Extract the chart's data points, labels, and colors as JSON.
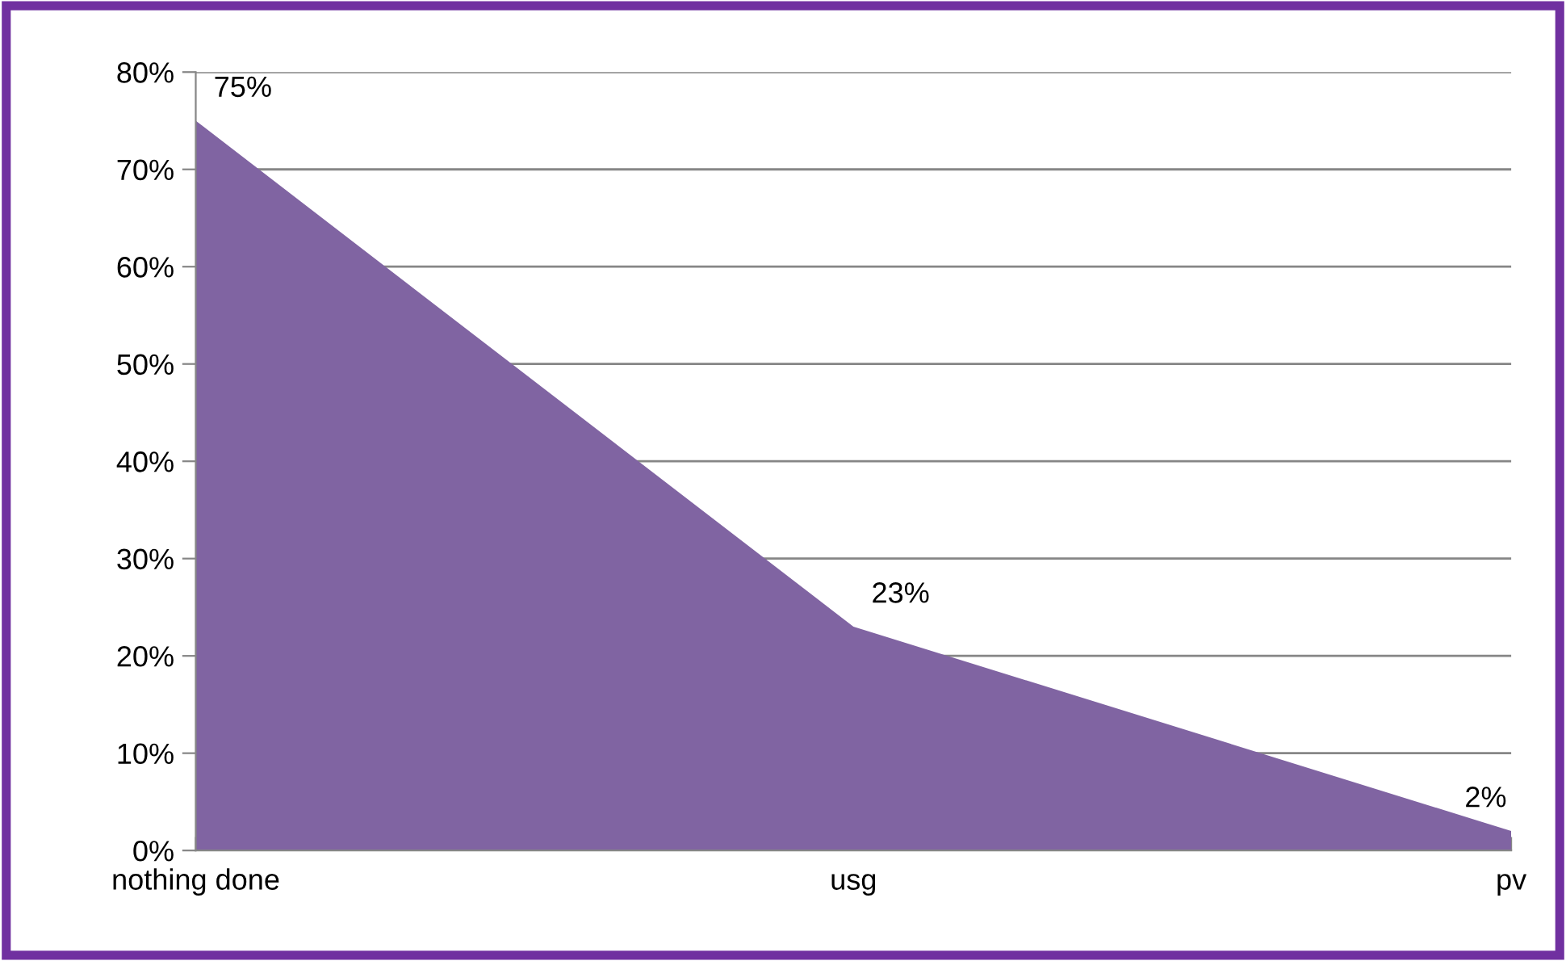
{
  "chart_data": {
    "type": "area",
    "categories": [
      "nothing done",
      "usg",
      "pv"
    ],
    "series": [
      {
        "color": "#8064a2",
        "values": [
          75,
          23,
          2
        ]
      }
    ],
    "value_labels": [
      "75%",
      "23%",
      "2%"
    ],
    "ylim": [
      0,
      80
    ],
    "yticks": [
      {
        "value": 0,
        "label": "0%"
      },
      {
        "value": 10,
        "label": "10%"
      },
      {
        "value": 20,
        "label": "20%"
      },
      {
        "value": 30,
        "label": "30%"
      },
      {
        "value": 40,
        "label": "40%"
      },
      {
        "value": 50,
        "label": "50%"
      },
      {
        "value": 60,
        "label": "60%"
      },
      {
        "value": 70,
        "label": "70%"
      },
      {
        "value": 80,
        "label": "80%"
      }
    ],
    "grid": "y",
    "legend": false
  }
}
